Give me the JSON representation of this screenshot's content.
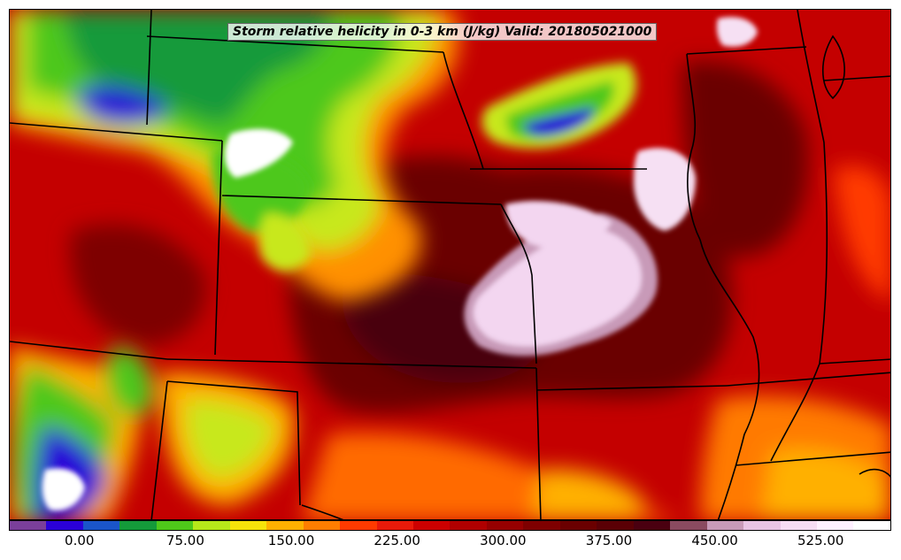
{
  "title": "Storm relative helicity in 0-3 km (J/kg) Valid: 201805021000",
  "colorbar": {
    "colors": [
      "#7a3f9a",
      "#2a00d8",
      "#1a55c9",
      "#149a3a",
      "#4ec81a",
      "#b6e81a",
      "#f5e30a",
      "#ffb000",
      "#ff7d00",
      "#ff3a00",
      "#e81a0a",
      "#cc0000",
      "#b00000",
      "#960000",
      "#7e0000",
      "#6a0000",
      "#5a0005",
      "#4a0010",
      "#8a4a60",
      "#c89ab8",
      "#e9c4e4",
      "#f6dcf3",
      "#fff0ff",
      "#ffffff"
    ],
    "tick_values": [
      0,
      75,
      150,
      225,
      300,
      375,
      450,
      525
    ],
    "tick_labels": [
      "0.00",
      "75.00",
      "150.00",
      "225.00",
      "300.00",
      "375.00",
      "450.00",
      "525.00"
    ],
    "value_min": -50,
    "value_max": 575
  }
}
